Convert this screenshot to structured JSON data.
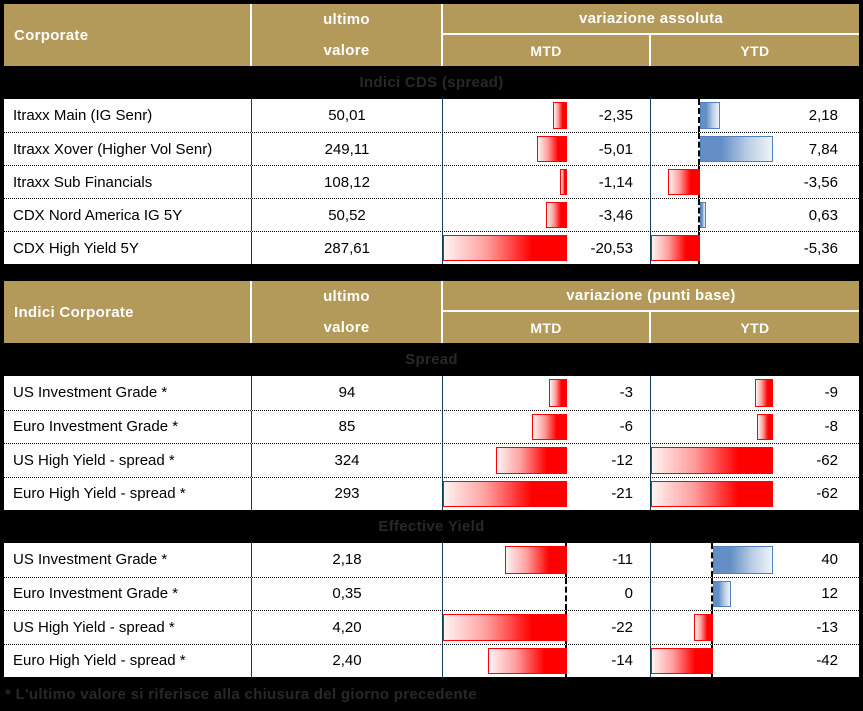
{
  "colors": {
    "gold": "#b3995a",
    "header_text": "#ffffff",
    "band_bg": "#000000",
    "band_text": "#282828",
    "grid_teal": "#123f58",
    "bar_negative": "#ff0000",
    "bar_positive": "#638ec6",
    "bar_positive_border": "#4f81bd",
    "row_bg": "#ffffff",
    "row_text": "#000000"
  },
  "chart_data": [
    {
      "type": "table",
      "title": "Corporate",
      "value_header_line1": "ultimo",
      "value_header_line2": "valore",
      "change_header": "variazione assoluta",
      "mtd_label": "MTD",
      "ytd_label": "YTD",
      "section": "Indici CDS (spread)",
      "bar_style": "gradient data bars: negative red extending left, positive blue extending right of zero axis",
      "mtd_axis_range": [
        -20.53,
        0
      ],
      "ytd_axis_range": [
        -5.36,
        7.84
      ],
      "rows": [
        {
          "label": "Itraxx Main (IG Senr)",
          "value": "50,01",
          "mtd": -2.35,
          "mtd_text": "-2,35",
          "ytd": 2.18,
          "ytd_text": "2,18"
        },
        {
          "label": "Itraxx Xover (Higher Vol Senr)",
          "value": "249,11",
          "mtd": -5.01,
          "mtd_text": "-5,01",
          "ytd": 7.84,
          "ytd_text": "7,84"
        },
        {
          "label": "Itraxx Sub Financials",
          "value": "108,12",
          "mtd": -1.14,
          "mtd_text": "-1,14",
          "ytd": -3.56,
          "ytd_text": "-3,56"
        },
        {
          "label": "CDX Nord America IG 5Y",
          "value": "50,52",
          "mtd": -3.46,
          "mtd_text": "-3,46",
          "ytd": 0.63,
          "ytd_text": "0,63"
        },
        {
          "label": "CDX High Yield 5Y",
          "value": "287,61",
          "mtd": -20.53,
          "mtd_text": "-20,53",
          "ytd": -5.36,
          "ytd_text": "-5,36"
        }
      ]
    },
    {
      "type": "table",
      "title": "Indici Corporate",
      "value_header_line1": "ultimo",
      "value_header_line2": "valore",
      "change_header": "variazione (punti base)",
      "mtd_label": "MTD",
      "ytd_label": "YTD",
      "sections": [
        {
          "name": "Spread",
          "mtd_axis_range": [
            -21,
            0
          ],
          "ytd_axis_range": [
            -62,
            0
          ],
          "rows": [
            {
              "label": "US Investment Grade *",
              "value": "94",
              "mtd": -3,
              "mtd_text": "-3",
              "ytd": -9,
              "ytd_text": "-9"
            },
            {
              "label": "Euro Investment Grade *",
              "value": "85",
              "mtd": -6,
              "mtd_text": "-6",
              "ytd": -8,
              "ytd_text": "-8"
            },
            {
              "label": "US High Yield  - spread *",
              "value": "324",
              "mtd": -12,
              "mtd_text": "-12",
              "ytd": -62,
              "ytd_text": "-62"
            },
            {
              "label": "Euro High Yield  - spread *",
              "value": "293",
              "mtd": -21,
              "mtd_text": "-21",
              "ytd": -62,
              "ytd_text": "-62"
            }
          ]
        },
        {
          "name": "Effective Yield",
          "mtd_axis_range": [
            -22,
            0
          ],
          "ytd_axis_range": [
            -42,
            40
          ],
          "rows": [
            {
              "label": "US Investment Grade *",
              "value": "2,18",
              "mtd": -11,
              "mtd_text": "-11",
              "ytd": 40,
              "ytd_text": "40"
            },
            {
              "label": "Euro Investment Grade *",
              "value": "0,35",
              "mtd": 0,
              "mtd_text": "0",
              "ytd": 12,
              "ytd_text": "12"
            },
            {
              "label": "US High Yield  - spread *",
              "value": "4,20",
              "mtd": -22,
              "mtd_text": "-22",
              "ytd": -13,
              "ytd_text": "-13"
            },
            {
              "label": "Euro High Yield  - spread *",
              "value": "2,40",
              "mtd": -14,
              "mtd_text": "-14",
              "ytd": -42,
              "ytd_text": "-42"
            }
          ]
        }
      ]
    }
  ],
  "footnote": "* L'ultimo valore si riferisce alla chiusura del giorno precedente"
}
